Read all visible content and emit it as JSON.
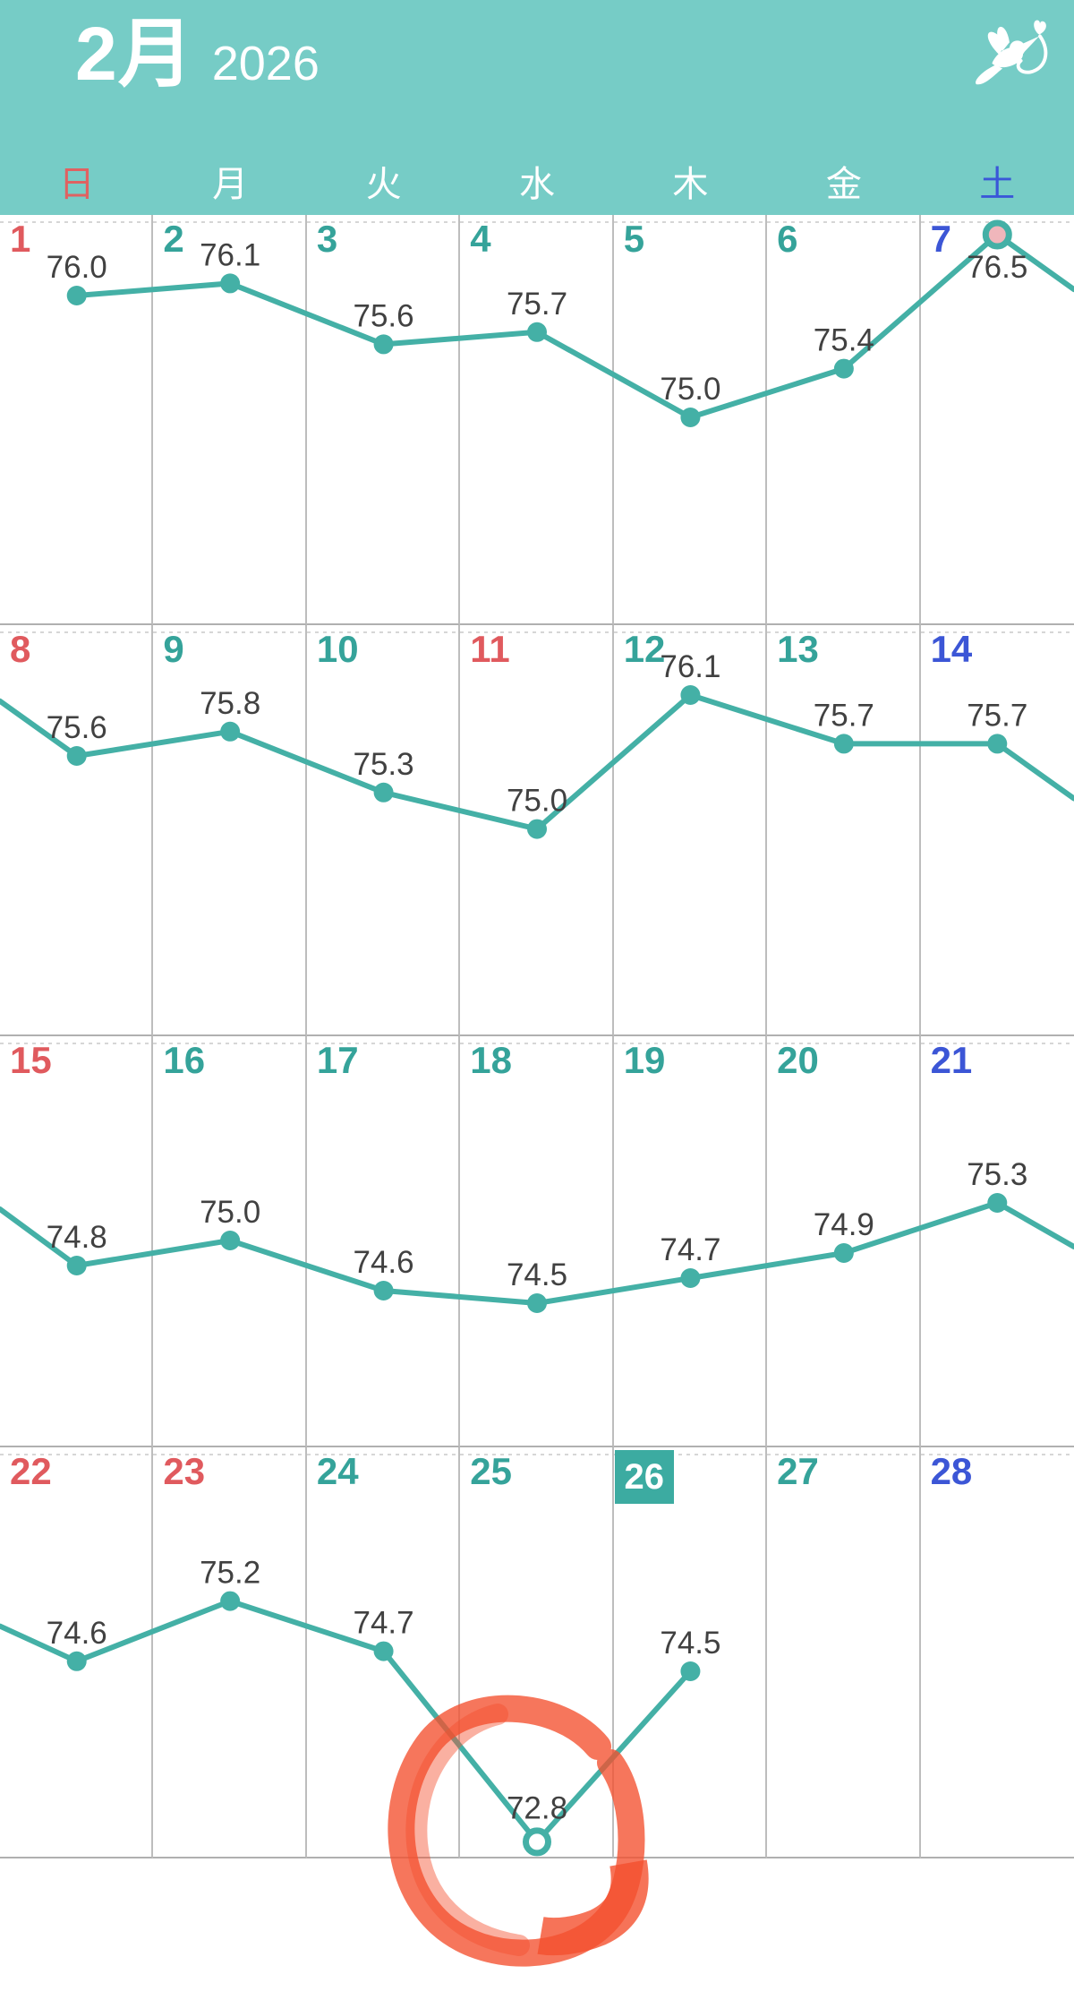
{
  "header": {
    "month_label": "2月",
    "year": "2026",
    "logo_icon": "hummingbird-flower-icon"
  },
  "colors": {
    "header_bg": "#76ccc6",
    "line": "#44b0a6",
    "weekday_date": "#35a39a",
    "sunday_date": "#e05a5e",
    "saturday_date": "#3c56d6",
    "today_box_bg": "#3caba1",
    "value_label": "#414141",
    "special_point_fill": "#f0b6bb",
    "annotation_marker": "#f4502e"
  },
  "weekday_header": [
    {
      "label": "日",
      "type": "sunday"
    },
    {
      "label": "月",
      "type": "weekday"
    },
    {
      "label": "火",
      "type": "weekday"
    },
    {
      "label": "水",
      "type": "weekday"
    },
    {
      "label": "木",
      "type": "weekday"
    },
    {
      "label": "金",
      "type": "weekday"
    },
    {
      "label": "土",
      "type": "saturday"
    }
  ],
  "calendar": {
    "today_date": 26,
    "weeks": [
      [
        {
          "date": 1,
          "type": "sunday"
        },
        {
          "date": 2,
          "type": "weekday"
        },
        {
          "date": 3,
          "type": "weekday"
        },
        {
          "date": 4,
          "type": "weekday"
        },
        {
          "date": 5,
          "type": "weekday"
        },
        {
          "date": 6,
          "type": "weekday"
        },
        {
          "date": 7,
          "type": "saturday"
        }
      ],
      [
        {
          "date": 8,
          "type": "sunday"
        },
        {
          "date": 9,
          "type": "weekday"
        },
        {
          "date": 10,
          "type": "weekday"
        },
        {
          "date": 11,
          "type": "holiday"
        },
        {
          "date": 12,
          "type": "weekday"
        },
        {
          "date": 13,
          "type": "weekday"
        },
        {
          "date": 14,
          "type": "saturday"
        }
      ],
      [
        {
          "date": 15,
          "type": "sunday"
        },
        {
          "date": 16,
          "type": "weekday"
        },
        {
          "date": 17,
          "type": "weekday"
        },
        {
          "date": 18,
          "type": "weekday"
        },
        {
          "date": 19,
          "type": "weekday"
        },
        {
          "date": 20,
          "type": "weekday"
        },
        {
          "date": 21,
          "type": "saturday"
        }
      ],
      [
        {
          "date": 22,
          "type": "sunday"
        },
        {
          "date": 23,
          "type": "holiday"
        },
        {
          "date": 24,
          "type": "weekday"
        },
        {
          "date": 25,
          "type": "weekday"
        },
        {
          "date": 26,
          "type": "weekday"
        },
        {
          "date": 27,
          "type": "weekday"
        },
        {
          "date": 28,
          "type": "saturday"
        }
      ]
    ]
  },
  "chart_data": {
    "type": "line",
    "title": "2月 2026 daily values over calendar",
    "x": "day of month",
    "y_est_range": [
      72.8,
      76.5
    ],
    "points": [
      {
        "date": 1,
        "value": 76.0
      },
      {
        "date": 2,
        "value": 76.1
      },
      {
        "date": 3,
        "value": 75.6
      },
      {
        "date": 4,
        "value": 75.7
      },
      {
        "date": 5,
        "value": 75.0
      },
      {
        "date": 6,
        "value": 75.4
      },
      {
        "date": 7,
        "value": 76.5
      },
      {
        "date": 8,
        "value": 75.6
      },
      {
        "date": 9,
        "value": 75.8
      },
      {
        "date": 10,
        "value": 75.3
      },
      {
        "date": 11,
        "value": 75.0
      },
      {
        "date": 12,
        "value": 76.1
      },
      {
        "date": 13,
        "value": 75.7
      },
      {
        "date": 14,
        "value": 75.7
      },
      {
        "date": 15,
        "value": 74.8
      },
      {
        "date": 16,
        "value": 75.0
      },
      {
        "date": 17,
        "value": 74.6
      },
      {
        "date": 18,
        "value": 74.5
      },
      {
        "date": 19,
        "value": 74.7
      },
      {
        "date": 20,
        "value": 74.9
      },
      {
        "date": 21,
        "value": 75.3
      },
      {
        "date": 22,
        "value": 74.6
      },
      {
        "date": 23,
        "value": 75.2
      },
      {
        "date": 24,
        "value": 74.7
      },
      {
        "date": 25,
        "value": 72.8
      },
      {
        "date": 26,
        "value": 74.5
      }
    ],
    "special_points": [
      {
        "date": 7,
        "value": 76.5,
        "style": "pink-filled-circle"
      },
      {
        "date": 25,
        "value": 72.8,
        "style": "open-circle"
      }
    ],
    "legend": "none",
    "grid": "calendar cells"
  },
  "annotation": {
    "type": "hand-drawn-marker-circle",
    "color": "#f4502e",
    "around_date": 25,
    "around_value": 72.8
  }
}
